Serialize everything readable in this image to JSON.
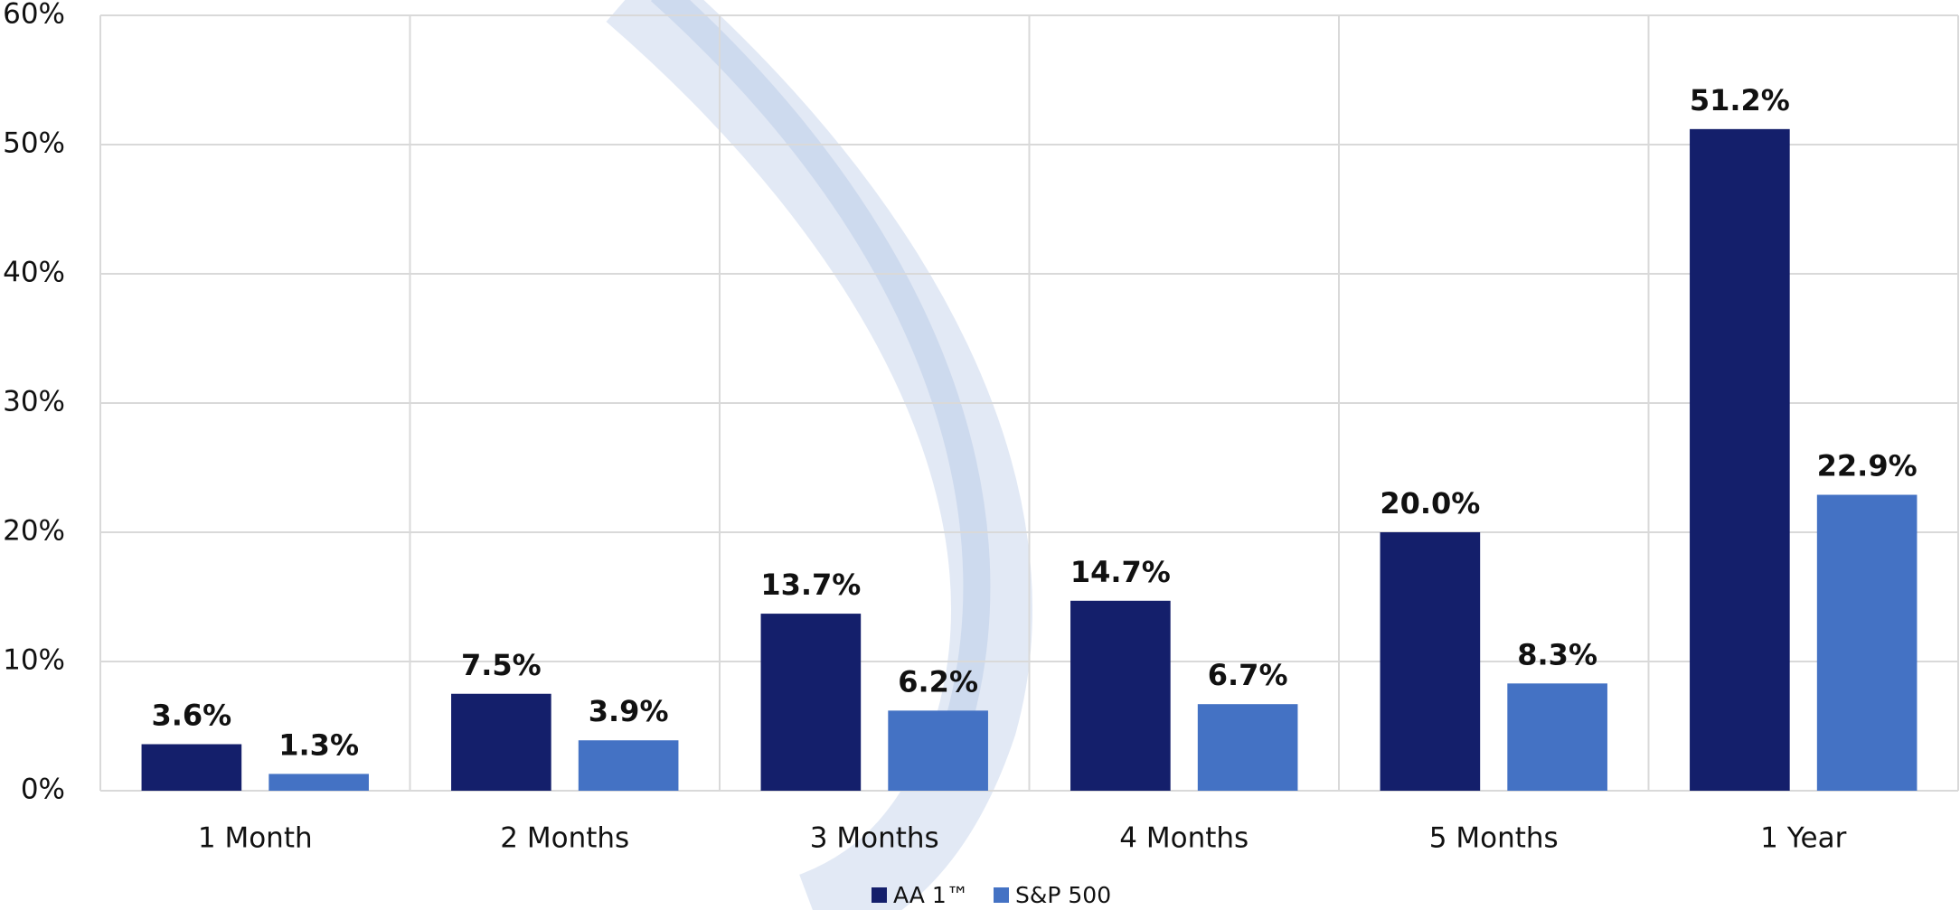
{
  "chart_data": {
    "type": "bar",
    "categories": [
      "1 Month",
      "2 Months",
      "3 Months",
      "4 Months",
      "5 Months",
      "1 Year"
    ],
    "series": [
      {
        "name": "AA 1™",
        "color": "#141f6b",
        "values": [
          3.6,
          7.5,
          13.7,
          14.7,
          20.0,
          51.2
        ],
        "value_labels": [
          "3.6%",
          "7.5%",
          "13.7%",
          "14.7%",
          "20.0%",
          "51.2%"
        ]
      },
      {
        "name": "S&P 500",
        "color": "#4472c4",
        "values": [
          1.3,
          3.9,
          6.2,
          6.7,
          8.3,
          22.9
        ],
        "value_labels": [
          "1.3%",
          "3.9%",
          "6.2%",
          "6.7%",
          "8.3%",
          "22.9%"
        ]
      }
    ],
    "ylim": [
      0,
      60
    ],
    "yticks": [
      {
        "value": 0,
        "label": "0%"
      },
      {
        "value": 10,
        "label": "10%"
      },
      {
        "value": 20,
        "label": "20%"
      },
      {
        "value": 30,
        "label": "30%"
      },
      {
        "value": 40,
        "label": "40%"
      },
      {
        "value": 50,
        "label": "50%"
      },
      {
        "value": 60,
        "label": "60%"
      }
    ],
    "grid": true,
    "legend": "bottom"
  }
}
